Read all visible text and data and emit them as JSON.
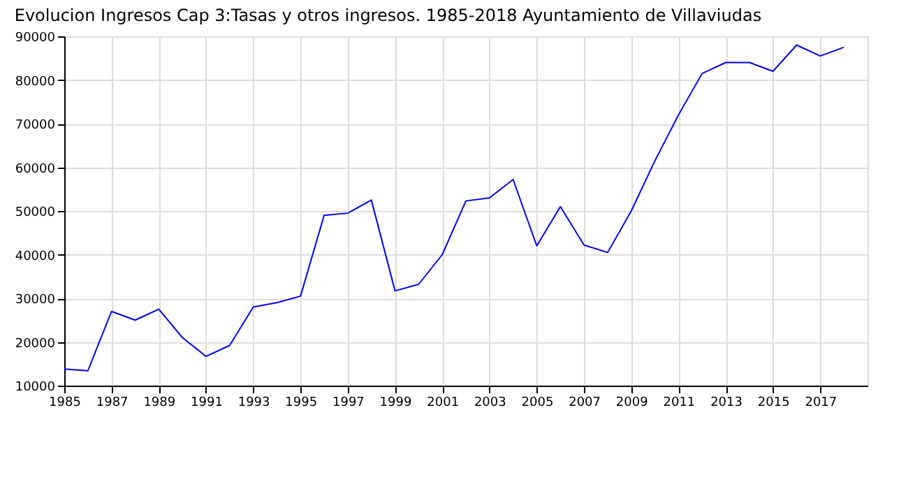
{
  "chart_data": {
    "type": "line",
    "title": "Evolucion Ingresos Cap 3:Tasas y otros ingresos. 1985-2018 Ayuntamiento de Villaviudas",
    "x": [
      1985,
      1986,
      1987,
      1988,
      1989,
      1990,
      1991,
      1992,
      1993,
      1994,
      1995,
      1996,
      1997,
      1998,
      1999,
      2000,
      2001,
      2002,
      2003,
      2004,
      2005,
      2006,
      2007,
      2008,
      2009,
      2010,
      2011,
      2012,
      2013,
      2014,
      2015,
      2016,
      2017,
      2018
    ],
    "series": [
      {
        "color": "#0000ff",
        "values": [
          13800,
          13400,
          27000,
          25000,
          27500,
          21000,
          16700,
          19200,
          28000,
          29000,
          30500,
          49000,
          49500,
          52500,
          31700,
          33200,
          40000,
          52300,
          53000,
          57200,
          42000,
          51000,
          42200,
          40500,
          50000,
          61500,
          72000,
          81500,
          84000,
          84000,
          82000,
          88000,
          85500,
          87500
        ]
      }
    ],
    "xlim": [
      1985,
      2019
    ],
    "xticks": [
      1985,
      1987,
      1989,
      1991,
      1993,
      1995,
      1997,
      1999,
      2001,
      2003,
      2005,
      2007,
      2009,
      2011,
      2013,
      2015,
      2017
    ],
    "ylim": [
      10000,
      90000
    ],
    "yticks": [
      10000,
      20000,
      30000,
      40000,
      50000,
      60000,
      70000,
      80000,
      90000
    ],
    "grid": true,
    "marker": "none",
    "line_style": "solid",
    "legend": false
  }
}
